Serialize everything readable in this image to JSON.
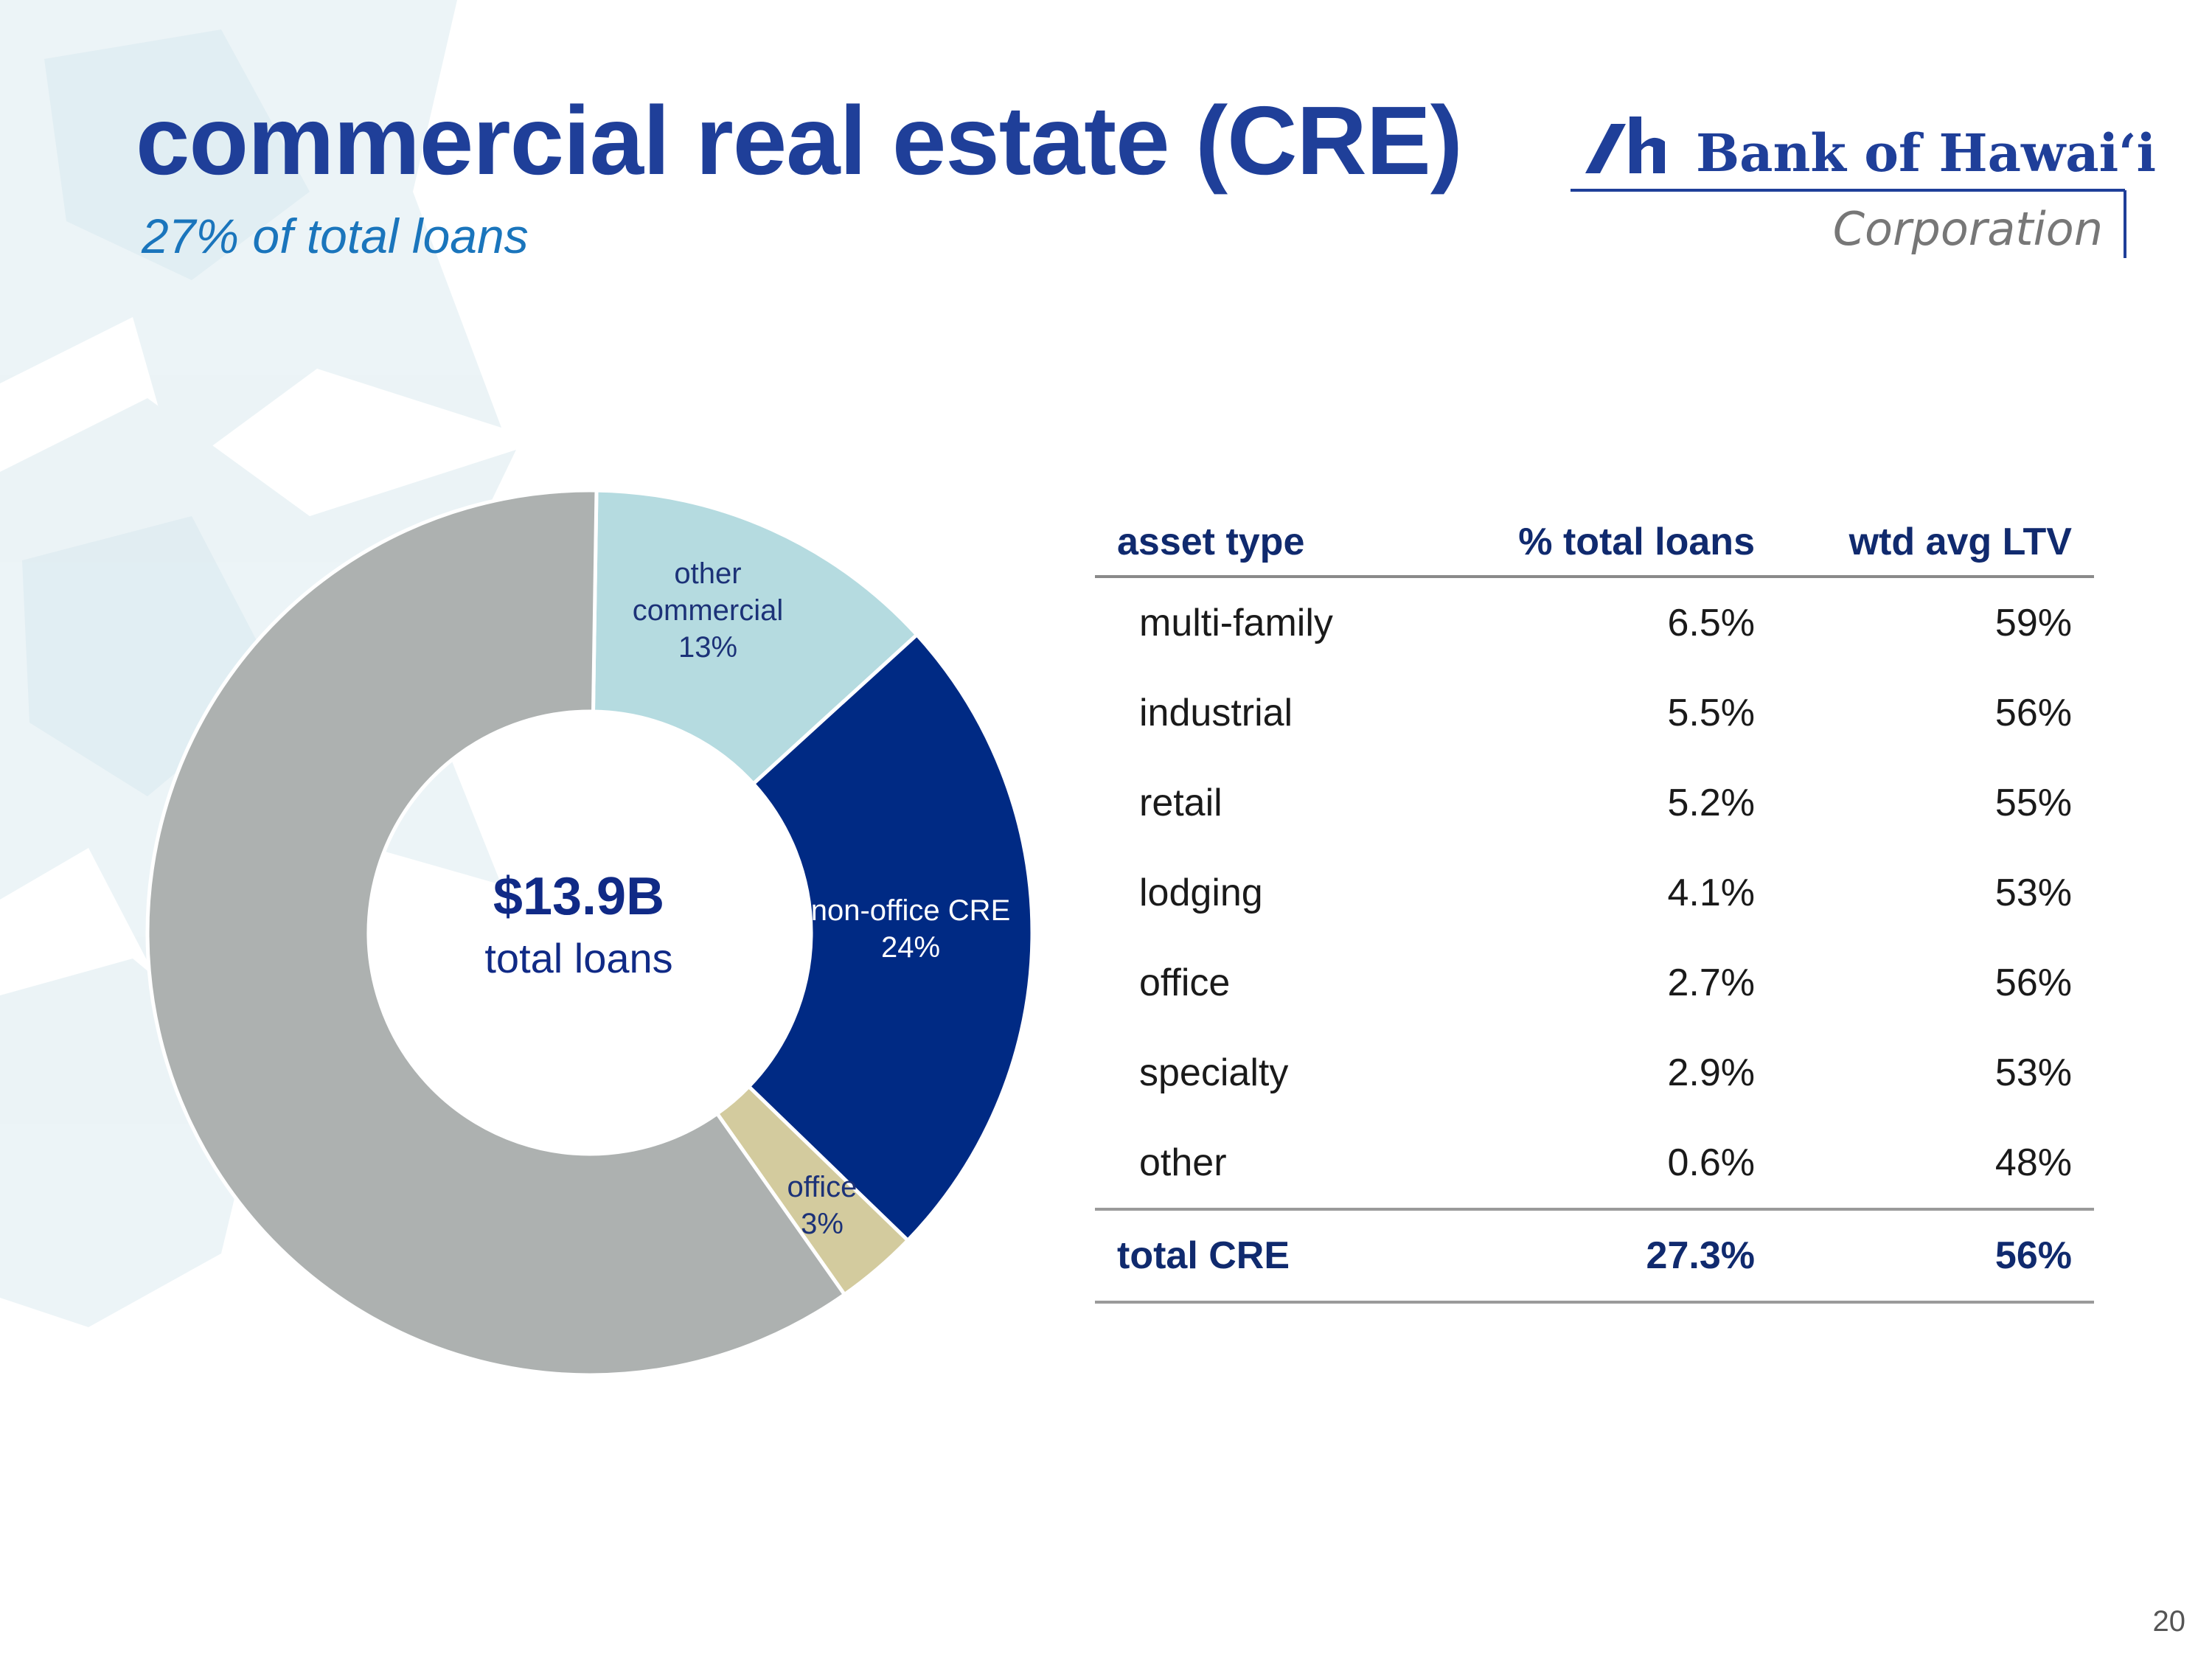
{
  "title": "commercial real estate (CRE)",
  "subtitle": "27% of total loans",
  "logo": {
    "name": "Bank of Hawai‘i",
    "tagline": "Corporation",
    "icon": "bank-of-hawaii-logo-icon"
  },
  "colors": {
    "title": "#1f3f99",
    "subtitle": "#1a75bc",
    "other_commercial": "#b5dbe0",
    "non_office_cre": "#002a84",
    "office": "#d3cb9e",
    "remaining_loans": "#adb1b0"
  },
  "chart_data": {
    "type": "pie",
    "donut": true,
    "center_value": "$13.9B",
    "center_label": "total loans",
    "slices": [
      {
        "label": "other commercial",
        "value": 13,
        "display": "13%",
        "color": "#b5dbe0"
      },
      {
        "label": "non-office CRE",
        "value": 24,
        "display": "24%",
        "color": "#002a84"
      },
      {
        "label": "office",
        "value": 3,
        "display": "3%",
        "color": "#d3cb9e"
      },
      {
        "label": "",
        "value": 60,
        "display": "",
        "color": "#adb1b0"
      }
    ]
  },
  "table": {
    "headers": [
      "asset type",
      "% total loans",
      "wtd avg LTV"
    ],
    "rows": [
      {
        "name": "multi-family",
        "pct": "6.5%",
        "ltv": "59%"
      },
      {
        "name": "industrial",
        "pct": "5.5%",
        "ltv": "56%"
      },
      {
        "name": "retail",
        "pct": "5.2%",
        "ltv": "55%"
      },
      {
        "name": "lodging",
        "pct": "4.1%",
        "ltv": "53%"
      },
      {
        "name": "office",
        "pct": "2.7%",
        "ltv": "56%"
      },
      {
        "name": "specialty",
        "pct": "2.9%",
        "ltv": "53%"
      },
      {
        "name": "other",
        "pct": "0.6%",
        "ltv": "48%"
      }
    ],
    "total": {
      "name": "total CRE",
      "pct": "27.3%",
      "ltv": "56%"
    }
  },
  "page_number": "20"
}
